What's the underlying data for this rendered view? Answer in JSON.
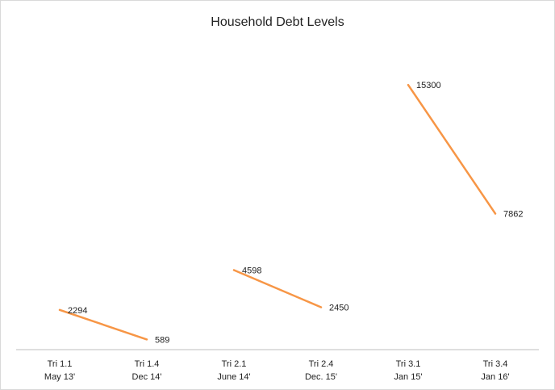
{
  "chart_data": {
    "type": "line",
    "title": "Household Debt Levels",
    "xlabel": "",
    "ylabel": "",
    "categories": [
      [
        "Tri 1.1",
        "May 13'"
      ],
      [
        "Tri 1.4",
        "Dec 14'"
      ],
      [
        "Tri 2.1",
        "June 14'"
      ],
      [
        "Tri 2.4",
        "Dec. 15'"
      ],
      [
        "Tri 3.1",
        "Jan 15'"
      ],
      [
        "Tri 3.4",
        "Jan 16'"
      ]
    ],
    "series": [
      {
        "values": [
          2294,
          589,
          4598,
          2450,
          15300,
          7862
        ],
        "segments": [
          [
            0,
            1
          ],
          [
            2,
            3
          ],
          [
            4,
            5
          ]
        ],
        "color": "#F79646"
      }
    ],
    "ylim": [
      0,
      17500
    ],
    "grid": false,
    "legend": "none"
  }
}
